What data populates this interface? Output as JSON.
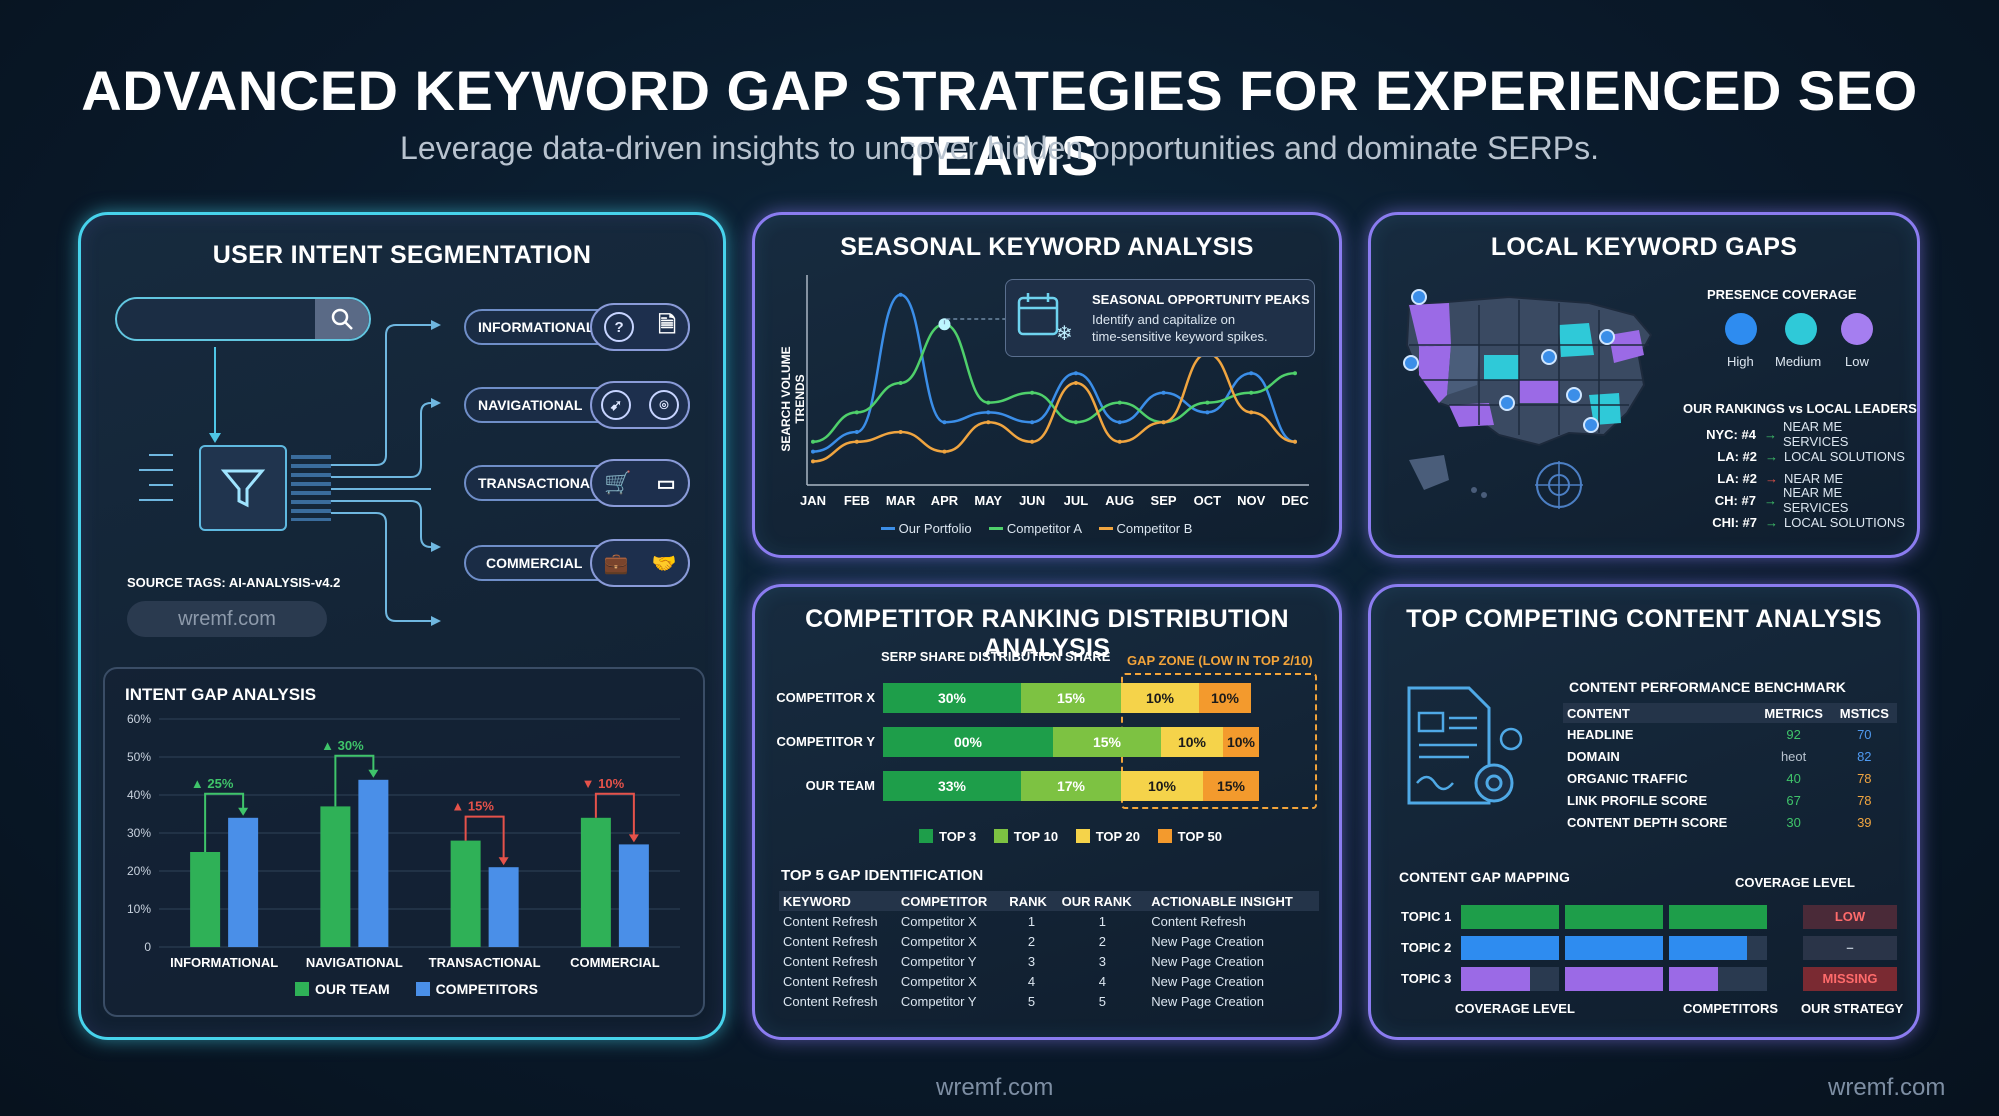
{
  "header": {
    "title": "ADVANCED KEYWORD GAP STRATEGIES FOR EXPERIENCED SEO TEAMS",
    "subtitle": "Leverage data-driven insights to uncover hidden opportunities and dominate SERPs."
  },
  "intent": {
    "title": "USER INTENT SEGMENTATION",
    "categories": [
      "INFORMATIONAL",
      "NAVIGATIONAL",
      "TRANSACTIONAL",
      "COMMERCIAL"
    ],
    "source_tags": "SOURCE TAGS: AI-ANALYSIS-v4.2",
    "domain_field": "wremf.com"
  },
  "gap_chart": {
    "title": "INTENT GAP ANALYSIS",
    "y_ticks": [
      "60%",
      "50%",
      "40%",
      "30%",
      "20%",
      "10%",
      "0"
    ],
    "legend_team": "OUR TEAM",
    "legend_comp": "COMPETITORS",
    "deltas": [
      "▲ 25%",
      "▲ 30%",
      "▲ 15%",
      "▼ 10%"
    ]
  },
  "seasonal": {
    "title": "SEASONAL KEYWORD ANALYSIS",
    "ylabel": "SEARCH VOLUME TRENDS",
    "callout_title": "SEASONAL OPPORTUNITY PEAKS",
    "callout_text1": "Identify and capitalize on",
    "callout_text2": "time-sensitive keyword spikes.",
    "legend": [
      "Our Portfolio",
      "Competitor A",
      "Competitor B"
    ]
  },
  "local": {
    "title": "LOCAL KEYWORD GAPS",
    "coverage_title": "PRESENCE COVERAGE",
    "coverage_labels": [
      "High",
      "Medium",
      "Low"
    ],
    "rankings_title": "OUR RANKINGS vs LOCAL LEADERS",
    "rankings": [
      {
        "city": "NYC: #4",
        "term": "NEAR ME SERVICES"
      },
      {
        "city": "LA: #2",
        "term": "LOCAL SOLUTIONS"
      },
      {
        "city": "LA: #2",
        "term": "NEAR ME"
      },
      {
        "city": "CH: #7",
        "term": "NEAR ME SERVICES"
      },
      {
        "city": "CHI: #7",
        "term": "LOCAL SOLUTIONS"
      }
    ]
  },
  "competitor": {
    "title": "COMPETITOR RANKING DISTRIBUTION ANALYSIS",
    "share_title": "SERP SHARE DISTRIBUTION SHARE",
    "gap_zone": "GAP ZONE (LOW IN TOP 2/10)",
    "rows": [
      {
        "label": "COMPETITOR X",
        "segs": [
          "30%",
          "15%",
          "10%",
          "10%"
        ]
      },
      {
        "label": "COMPETITOR Y",
        "segs": [
          "00%",
          "15%",
          "10%",
          "10%"
        ]
      },
      {
        "label": "OUR TEAM",
        "segs": [
          "33%",
          "17%",
          "10%",
          "15%"
        ]
      }
    ],
    "legend": [
      "TOP 3",
      "TOP 10",
      "TOP 20",
      "TOP 50"
    ],
    "gap_title": "TOP 5 GAP IDENTIFICATION",
    "table_headers": [
      "KEYWORD",
      "COMPETITOR",
      "RANK",
      "OUR RANK",
      "ACTIONABLE INSIGHT"
    ],
    "table_rows": [
      [
        "Content Refresh",
        "Competitor X",
        "1",
        "1",
        "Content Refresh"
      ],
      [
        "Content Refresh",
        "Competitor X",
        "2",
        "2",
        "New Page Creation"
      ],
      [
        "Content Refresh",
        "Competitor Y",
        "3",
        "3",
        "New Page Creation"
      ],
      [
        "Content Refresh",
        "Competitor X",
        "4",
        "4",
        "New Page Creation"
      ],
      [
        "Content Refresh",
        "Competitor Y",
        "5",
        "5",
        "New Page Creation"
      ]
    ]
  },
  "content": {
    "title": "TOP COMPETING CONTENT ANALYSIS",
    "bench_title": "CONTENT PERFORMANCE BENCHMARK",
    "bench_headers": [
      "CONTENT",
      "METRICS",
      "MSTICS"
    ],
    "bench_rows": [
      [
        "HEADLINE",
        "92",
        "70"
      ],
      [
        "DOMAIN",
        "heot",
        "82"
      ],
      [
        "ORGANIC TRAFFIC",
        "40",
        "78"
      ],
      [
        "LINK PROFILE SCORE",
        "67",
        "78"
      ],
      [
        "CONTENT DEPTH SCORE",
        "30",
        "39"
      ]
    ],
    "mapping_title": "CONTENT GAP MAPPING",
    "coverage_level": "COVERAGE LEVEL",
    "topics": [
      "TOPIC 1",
      "TOPIC 2",
      "TOPIC 3"
    ],
    "strategy": [
      "LOW",
      "–",
      "MISSING"
    ],
    "footer": [
      "COVERAGE LEVEL",
      "COMPETITORS",
      "OUR STRATEGY"
    ]
  },
  "footer": {
    "watermark1": "wremf.com",
    "watermark2": "wremf.com"
  },
  "chart_data": [
    {
      "type": "bar",
      "title": "INTENT GAP ANALYSIS",
      "categories": [
        "INFORMATIONAL",
        "NAVIGATIONAL",
        "TRANSACTIONAL",
        "COMMERCIAL"
      ],
      "series": [
        {
          "name": "OUR TEAM",
          "values": [
            25,
            37,
            28,
            34
          ]
        },
        {
          "name": "COMPETITORS",
          "values": [
            34,
            44,
            21,
            27
          ]
        }
      ],
      "ylim": [
        0,
        60
      ],
      "colors": [
        "#2fb157",
        "#4a8fe8"
      ]
    },
    {
      "type": "line",
      "title": "SEASONAL KEYWORD ANALYSIS",
      "ylabel": "SEARCH VOLUME TRENDS",
      "categories": [
        "JAN",
        "FEB",
        "MAR",
        "APR",
        "MAY",
        "JUN",
        "JUL",
        "AUG",
        "SEP",
        "OCT",
        "NOV",
        "DEC"
      ],
      "series": [
        {
          "name": "Our Portfolio",
          "values": [
            15,
            25,
            95,
            30,
            35,
            30,
            55,
            30,
            45,
            35,
            55,
            20
          ]
        },
        {
          "name": "Competitor A",
          "values": [
            20,
            35,
            50,
            80,
            40,
            45,
            30,
            40,
            30,
            40,
            45,
            55
          ]
        },
        {
          "name": "Competitor B",
          "values": [
            10,
            20,
            25,
            15,
            30,
            20,
            50,
            20,
            30,
            65,
            35,
            20
          ]
        }
      ],
      "colors": [
        "#3b8ee8",
        "#4fd06b",
        "#f0a540"
      ]
    }
  ]
}
